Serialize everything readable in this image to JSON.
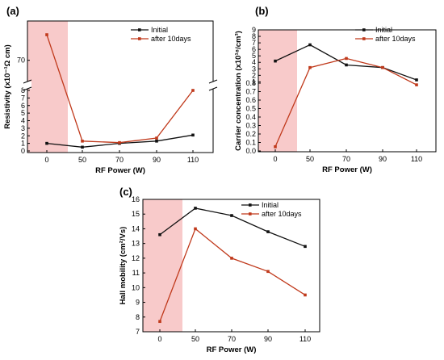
{
  "colors": {
    "initial": "#111111",
    "after": "#c0391b",
    "shade": "#f7c1c1",
    "grid": "#000000"
  },
  "chart_data": [
    {
      "id": "a",
      "type": "line",
      "panel_label": "(a)",
      "xlabel": "RF Power (W)",
      "ylabel": "Resistivity (x10⁻¹Ω cm)",
      "x_ticks": [
        "0",
        "50",
        "70",
        "90",
        "110"
      ],
      "x": [
        0,
        50,
        70,
        90,
        110
      ],
      "y_axis_broken": true,
      "y_segments": [
        {
          "range": [
            0,
            8
          ],
          "ticks": [
            "0",
            "1",
            "2",
            "3",
            "4",
            "5",
            "6",
            "7",
            "8"
          ]
        },
        {
          "range": [
            65,
            80
          ],
          "ticks": [
            "70"
          ]
        }
      ],
      "shaded_x_range": [
        -15,
        30
      ],
      "legend": {
        "position": "top-right",
        "entries": [
          "Initial",
          "after 10days"
        ]
      },
      "series": [
        {
          "name": "Initial",
          "values": [
            1.0,
            0.5,
            1.0,
            1.3,
            2.1
          ]
        },
        {
          "name": "after 10days",
          "values": [
            76.5,
            1.3,
            1.1,
            1.7,
            8.0
          ]
        }
      ]
    },
    {
      "id": "b",
      "type": "line",
      "panel_label": "(b)",
      "xlabel": "RF Power (W)",
      "ylabel": "Carrier concentration (x10¹⁸/cm³)",
      "x_ticks": [
        "0",
        "50",
        "70",
        "90",
        "110"
      ],
      "x": [
        0,
        50,
        70,
        90,
        110
      ],
      "y_axis_broken": true,
      "y_segments": [
        {
          "range": [
            0,
            0.8
          ],
          "ticks": [
            "0.0",
            "0.1",
            "0.2",
            "0.3",
            "0.4",
            "0.5",
            "0.6",
            "0.7",
            "0.8"
          ]
        },
        {
          "range": [
            0.8,
            9
          ],
          "ticks": [
            "1",
            "2",
            "3",
            "4",
            "5",
            "6",
            "7",
            "8",
            "9"
          ]
        }
      ],
      "shaded_x_range": [
        -15,
        30
      ],
      "legend": {
        "position": "top-right",
        "entries": [
          "Initial",
          "after 10days"
        ]
      },
      "series": [
        {
          "name": "Initial",
          "values": [
            4.2,
            6.7,
            3.6,
            3.2,
            1.3
          ]
        },
        {
          "name": "after 10days",
          "values": [
            0.05,
            3.2,
            4.6,
            3.2,
            0.78
          ]
        }
      ]
    },
    {
      "id": "c",
      "type": "line",
      "panel_label": "(c)",
      "xlabel": "RF Power (W)",
      "ylabel": "Hall mobility (cm²/Vs)",
      "x_ticks": [
        "0",
        "50",
        "70",
        "90",
        "110"
      ],
      "x": [
        0,
        50,
        70,
        90,
        110
      ],
      "y_axis_broken": false,
      "ylim": [
        7,
        16
      ],
      "y_ticks": [
        "7",
        "8",
        "9",
        "10",
        "11",
        "12",
        "13",
        "14",
        "15",
        "16"
      ],
      "shaded_x_range": [
        -15,
        30
      ],
      "legend": {
        "position": "top-right",
        "entries": [
          "Initial",
          "after 10days"
        ]
      },
      "series": [
        {
          "name": "Initial",
          "values": [
            13.6,
            15.4,
            14.9,
            13.8,
            12.8
          ]
        },
        {
          "name": "after 10days",
          "values": [
            7.7,
            14.0,
            12.0,
            11.1,
            9.5
          ]
        }
      ]
    }
  ]
}
